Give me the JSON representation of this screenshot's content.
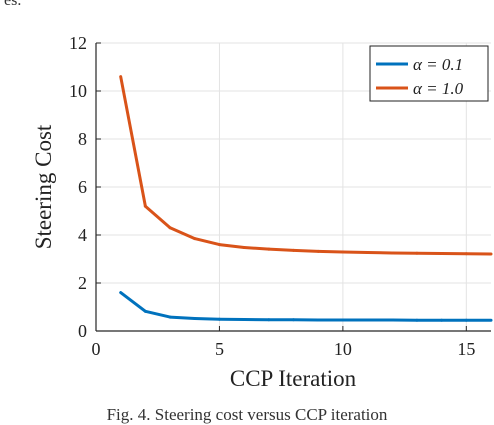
{
  "page": {
    "top_fragment": "es.",
    "caption": "Fig. 4.   Steering cost versus CCP iteration"
  },
  "chart_data": {
    "type": "line",
    "title": "",
    "xlabel": "CCP Iteration",
    "ylabel": "Steering Cost",
    "xlim": [
      0,
      16
    ],
    "ylim": [
      0,
      12
    ],
    "xticks": [
      0,
      5,
      10,
      15
    ],
    "yticks": [
      0,
      2,
      4,
      6,
      8,
      10,
      12
    ],
    "grid": true,
    "legend_position": "top-right",
    "series": [
      {
        "name": "α = 0.1",
        "color": "#0072bd",
        "x": [
          1,
          2,
          3,
          4,
          5,
          6,
          7,
          8,
          9,
          10,
          11,
          12,
          13,
          14,
          15,
          16
        ],
        "y": [
          1.6,
          0.82,
          0.58,
          0.52,
          0.49,
          0.48,
          0.47,
          0.47,
          0.46,
          0.46,
          0.46,
          0.46,
          0.45,
          0.45,
          0.45,
          0.45
        ]
      },
      {
        "name": "α = 1.0",
        "color": "#d95319",
        "x": [
          1,
          2,
          3,
          4,
          5,
          6,
          7,
          8,
          9,
          10,
          11,
          12,
          13,
          14,
          15,
          16
        ],
        "y": [
          10.6,
          5.2,
          4.3,
          3.85,
          3.6,
          3.48,
          3.41,
          3.36,
          3.32,
          3.29,
          3.27,
          3.25,
          3.24,
          3.23,
          3.22,
          3.21
        ]
      }
    ]
  }
}
